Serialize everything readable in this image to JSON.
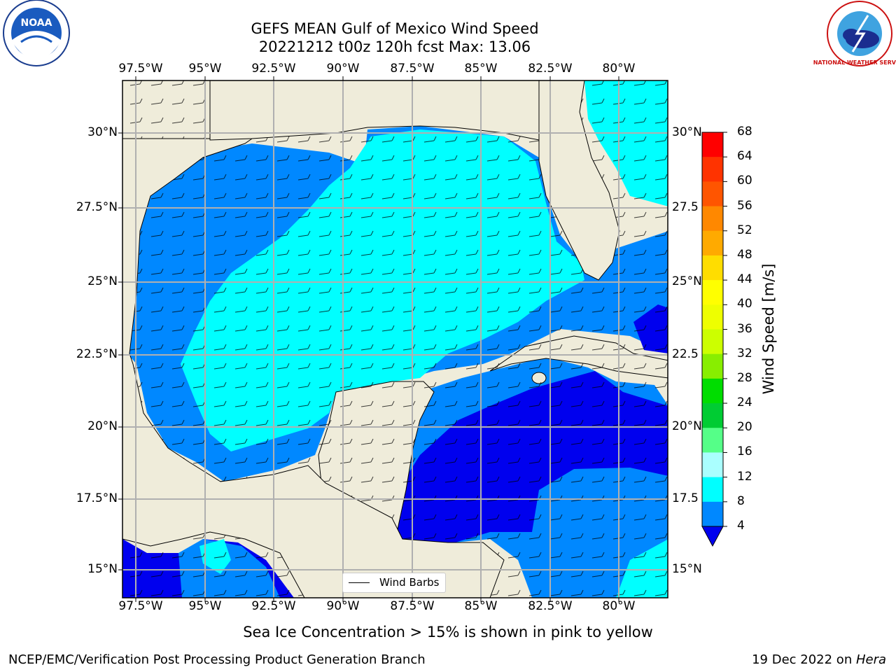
{
  "title": {
    "line1": "GEFS MEAN Gulf of Mexico Wind Speed",
    "line2": "20221212 t00z 120h fcst   Max: 13.06"
  },
  "logos": {
    "left": "NOAA",
    "right": "NATIONAL WEATHER SERVICE"
  },
  "axes": {
    "lon_labels": [
      "97.5°W",
      "95°W",
      "92.5°W",
      "90°W",
      "87.5°W",
      "85°W",
      "82.5°W",
      "80°W"
    ],
    "lat_labels": [
      "30°N",
      "27.5°N",
      "25°N",
      "22.5°N",
      "20°N",
      "17.5°N",
      "15°N"
    ],
    "lat_labels_right": [
      "30°N",
      "27.5",
      "25°N",
      "22.5",
      "20°N",
      "17.5",
      "15°N"
    ],
    "lon_range": [
      -98,
      -78
    ],
    "lat_range": [
      14,
      31.6
    ]
  },
  "legend": {
    "label": "Wind Barbs"
  },
  "colorbar": {
    "label": "Wind Speed [m/s]",
    "ticks": [
      "68",
      "64",
      "60",
      "56",
      "52",
      "48",
      "44",
      "40",
      "36",
      "32",
      "28",
      "24",
      "20",
      "16",
      "12",
      "8",
      "4"
    ],
    "colors": [
      "#ff0000",
      "#ff3300",
      "#ff6600",
      "#ff8800",
      "#ffaa00",
      "#ffcc00",
      "#ffee00",
      "#ffff00",
      "#eeff00",
      "#ccff00",
      "#88ee00",
      "#44dd00",
      "#00dd00",
      "#00cc33",
      "#55ff88",
      "#aaffff",
      "#55ffff",
      "#00ffff",
      "#0088ff",
      "#0000ee"
    ]
  },
  "notes": {
    "sea_ice": "Sea Ice Concentration > 15% is shown in pink to yellow",
    "branch": "NCEP/EMC/Verification Post Processing Product Generation Branch",
    "date_prefix": "19 Dec 2022 on ",
    "date_machine": "Hera"
  },
  "map_colors": {
    "land": "#efecda",
    "light": "#00ffff",
    "medium": "#0088ff",
    "dark": "#0000ee"
  }
}
